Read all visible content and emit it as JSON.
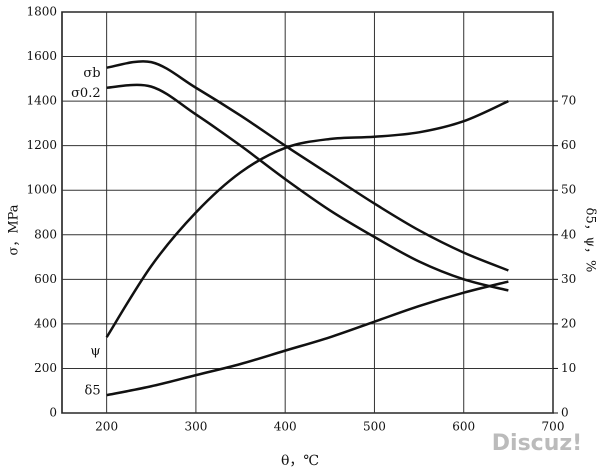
{
  "chart_data": {
    "type": "line",
    "x_label": "θ，℃",
    "y_label": "σ，MPa",
    "y2_label": "δ5，ψ，%",
    "x": [
      200,
      250,
      300,
      350,
      400,
      450,
      500,
      550,
      600,
      650
    ],
    "series": [
      {
        "name": "σb",
        "color": "#111111",
        "values": [
          1550,
          1575,
          1460,
          1335,
          1200,
          1070,
          940,
          820,
          720,
          640
        ]
      },
      {
        "name": "σ0.2",
        "color": "#111111",
        "values": [
          1460,
          1465,
          1340,
          1200,
          1050,
          910,
          790,
          680,
          600,
          550
        ]
      },
      {
        "name": "ψ",
        "color": "#111111",
        "axis": "y2",
        "values": [
          17,
          33,
          45,
          54,
          59.5,
          61.5,
          62,
          63,
          65.5,
          70
        ]
      },
      {
        "name": "δ5",
        "color": "#111111",
        "axis": "y2",
        "values": [
          4,
          6,
          8.5,
          11,
          14,
          17,
          20.5,
          24,
          27,
          29.5
        ]
      }
    ],
    "xlim": [
      150,
      700
    ],
    "xticks": [
      200,
      300,
      400,
      500,
      600,
      700
    ],
    "ylim": [
      0,
      1800
    ],
    "yticks": [
      0,
      200,
      400,
      600,
      800,
      1000,
      1200,
      1400,
      1600,
      1800
    ],
    "y2lim": [
      0,
      90
    ],
    "y2ticks": [
      0,
      10,
      20,
      30,
      40,
      50,
      60,
      70
    ],
    "grid": true
  },
  "watermark": "Discuz!"
}
